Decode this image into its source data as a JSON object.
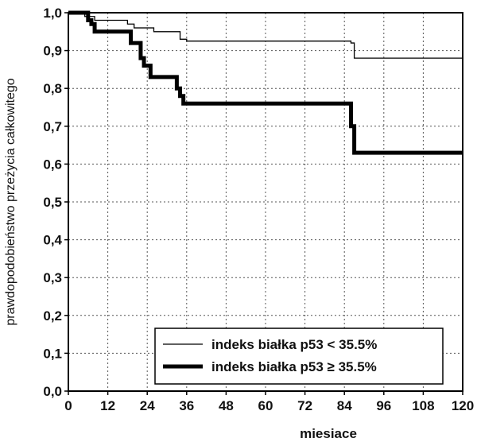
{
  "chart_data": {
    "type": "line",
    "xlabel": "miesiace",
    "ylabel": "prawdopodobieństwo przeżycia całkowitego",
    "xlim": [
      0,
      120
    ],
    "ylim": [
      0,
      1
    ],
    "xticks": [
      0,
      12,
      24,
      36,
      48,
      60,
      72,
      84,
      96,
      108,
      120
    ],
    "yticks": [
      0,
      0.1,
      0.2,
      0.3,
      0.4,
      0.5,
      0.6,
      0.7,
      0.8,
      0.9,
      1.0
    ],
    "ytick_labels": [
      "0,0",
      "0,1",
      "0,2",
      "0,3",
      "0,4",
      "0,5",
      "0,6",
      "0,7",
      "0,8",
      "0,9",
      "1,0"
    ],
    "grid": true,
    "legend_position": "bottom-right",
    "series": [
      {
        "name": "indeks białka p53 < 35.5%",
        "style": "thin",
        "x": [
          0,
          5,
          8,
          10,
          18,
          20,
          26,
          28,
          34,
          36,
          86,
          87,
          120
        ],
        "y": [
          1.0,
          0.99,
          0.98,
          0.98,
          0.97,
          0.96,
          0.95,
          0.95,
          0.93,
          0.925,
          0.92,
          0.88,
          0.88
        ]
      },
      {
        "name": "indeks białka p53 ≥ 35.5%",
        "style": "thick",
        "x": [
          0,
          6,
          7,
          8,
          19,
          22,
          23,
          25,
          33,
          34,
          35,
          86,
          87,
          120
        ],
        "y": [
          1.0,
          0.98,
          0.97,
          0.95,
          0.92,
          0.88,
          0.86,
          0.83,
          0.8,
          0.78,
          0.76,
          0.7,
          0.63,
          0.63
        ]
      }
    ]
  }
}
